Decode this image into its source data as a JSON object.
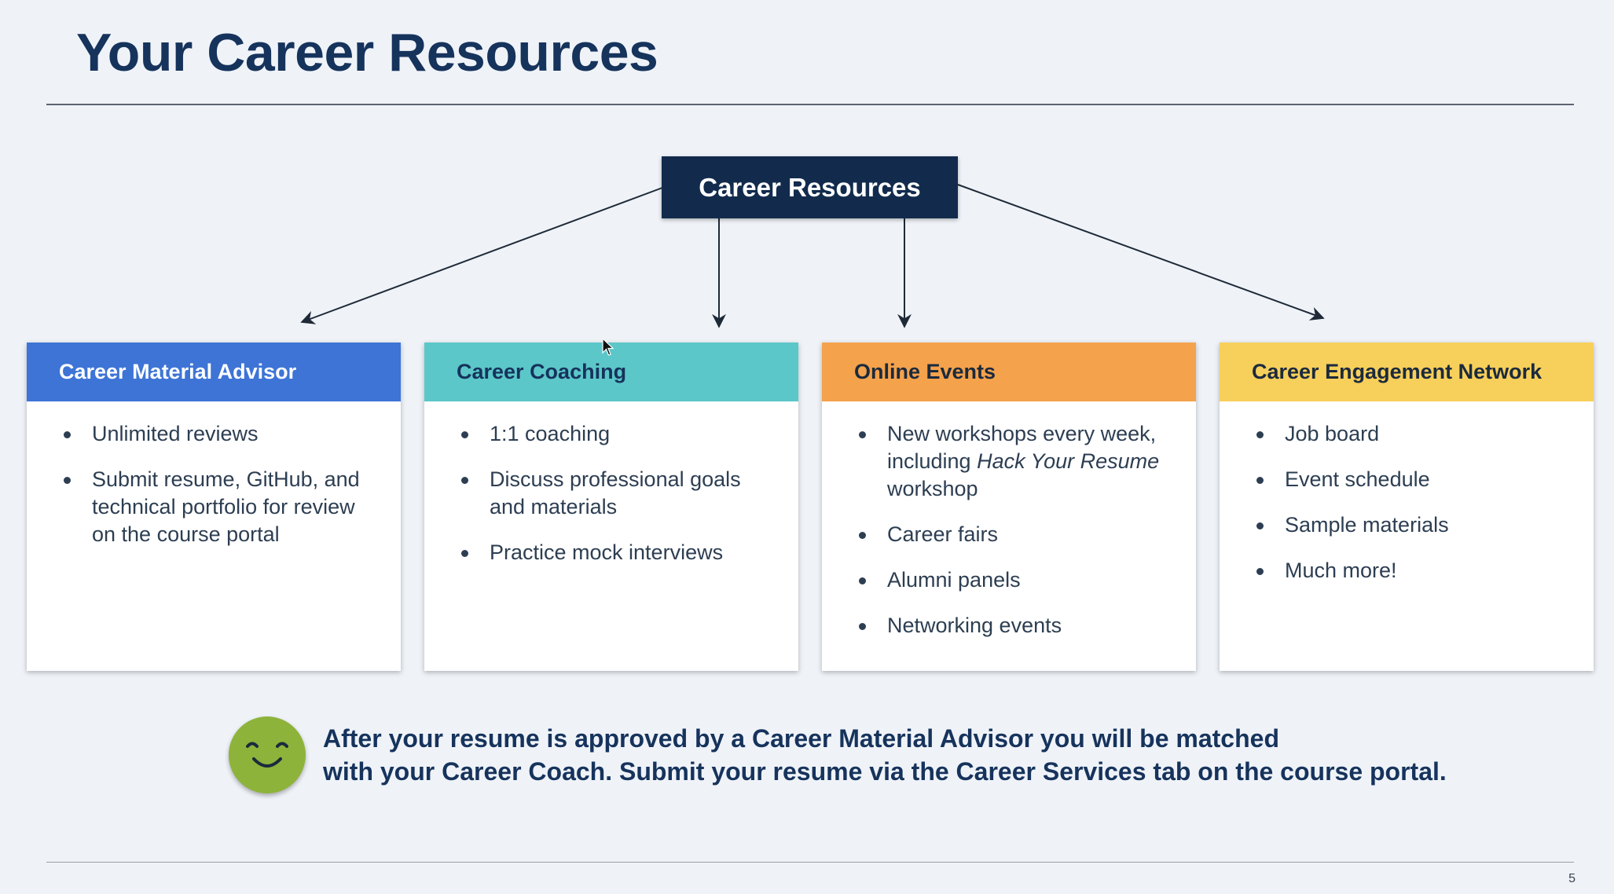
{
  "slide": {
    "title": "Your Career Resources",
    "page_number": "5"
  },
  "diagram": {
    "root": "Career Resources",
    "cards": [
      {
        "title": "Career Material Advisor",
        "header_color": "#3d74d6",
        "header_text_color": "#ffffff",
        "items": [
          "Unlimited reviews",
          "Submit resume, GitHub, and technical portfolio for review on the course portal"
        ]
      },
      {
        "title": "Career Coaching",
        "header_color": "#5cc7c9",
        "header_text_color": "#16335c",
        "items": [
          "1:1 coaching",
          "Discuss professional goals and materials",
          "Practice mock interviews"
        ]
      },
      {
        "title": "Online Events",
        "header_color": "#f4a24c",
        "header_text_color": "#1b2a3d",
        "items": [
          {
            "before": "New workshops every week, including ",
            "em": "Hack Your Resume",
            "after": " workshop"
          },
          "Career fairs",
          "Alumni panels",
          "Networking events"
        ]
      },
      {
        "title": "Career Engagement Network",
        "header_color": "#f7cf5b",
        "header_text_color": "#1b2a3d",
        "items": [
          "Job board",
          "Event schedule",
          "Sample materials",
          "Much more!"
        ]
      }
    ]
  },
  "footer": {
    "icon": "smiley-face-icon",
    "icon_color": "#8db33a",
    "line1": "After your resume is approved by a Career Material Advisor you will be matched",
    "line2": "with your Career Coach. Submit your resume via the Career Services tab on the course portal."
  }
}
